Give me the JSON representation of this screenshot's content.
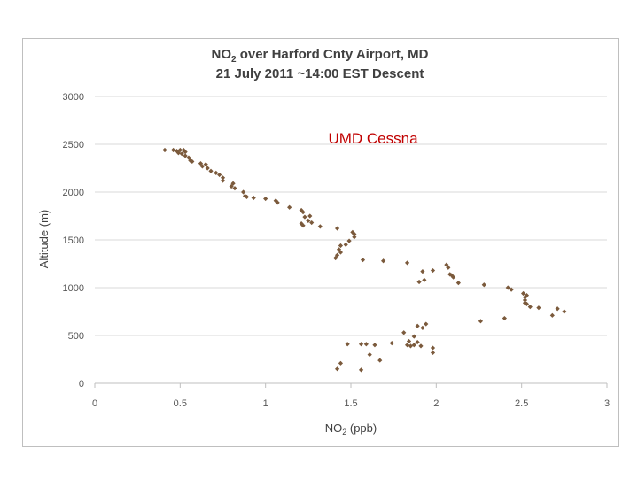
{
  "chart_data": {
    "type": "scatter",
    "title_line1_prefix": "NO",
    "title_line1_sub": "2",
    "title_line1_suffix": " over Harford Cnty Airport, MD",
    "title_line2": "21 July 2011  ~14:00 EST Descent",
    "annotation": "UMD Cessna",
    "xlabel_prefix": "NO",
    "xlabel_sub": "2",
    "xlabel_suffix": " (ppb)",
    "ylabel": "Altitude (m)",
    "xlim": [
      0,
      3
    ],
    "ylim": [
      0,
      3000
    ],
    "x_ticks": [
      "0",
      "0.5",
      "1",
      "1.5",
      "2",
      "2.5",
      "3"
    ],
    "y_ticks": [
      "0",
      "500",
      "1000",
      "1500",
      "2000",
      "2500",
      "3000"
    ],
    "grid": "horizontal",
    "marker_color": "#7b5a3c",
    "points": [
      [
        0.41,
        2440
      ],
      [
        0.46,
        2440
      ],
      [
        0.48,
        2430
      ],
      [
        0.5,
        2440
      ],
      [
        0.52,
        2440
      ],
      [
        0.53,
        2420
      ],
      [
        0.49,
        2410
      ],
      [
        0.51,
        2400
      ],
      [
        0.53,
        2380
      ],
      [
        0.55,
        2360
      ],
      [
        0.56,
        2330
      ],
      [
        0.57,
        2320
      ],
      [
        0.62,
        2300
      ],
      [
        0.63,
        2270
      ],
      [
        0.65,
        2290
      ],
      [
        0.66,
        2250
      ],
      [
        0.68,
        2220
      ],
      [
        0.71,
        2200
      ],
      [
        0.73,
        2180
      ],
      [
        0.75,
        2150
      ],
      [
        0.75,
        2120
      ],
      [
        0.8,
        2060
      ],
      [
        0.81,
        2090
      ],
      [
        0.82,
        2040
      ],
      [
        0.87,
        2000
      ],
      [
        0.88,
        1960
      ],
      [
        0.89,
        1950
      ],
      [
        0.93,
        1940
      ],
      [
        1.0,
        1930
      ],
      [
        1.06,
        1910
      ],
      [
        1.07,
        1890
      ],
      [
        1.14,
        1840
      ],
      [
        1.21,
        1810
      ],
      [
        1.22,
        1790
      ],
      [
        1.23,
        1740
      ],
      [
        1.26,
        1750
      ],
      [
        1.25,
        1700
      ],
      [
        1.27,
        1680
      ],
      [
        1.21,
        1670
      ],
      [
        1.22,
        1650
      ],
      [
        1.32,
        1640
      ],
      [
        1.42,
        1620
      ],
      [
        1.51,
        1580
      ],
      [
        1.52,
        1560
      ],
      [
        1.52,
        1530
      ],
      [
        1.49,
        1490
      ],
      [
        1.47,
        1450
      ],
      [
        1.44,
        1440
      ],
      [
        1.43,
        1400
      ],
      [
        1.44,
        1370
      ],
      [
        1.42,
        1340
      ],
      [
        1.41,
        1310
      ],
      [
        1.57,
        1290
      ],
      [
        1.69,
        1280
      ],
      [
        1.83,
        1260
      ],
      [
        1.92,
        1170
      ],
      [
        1.98,
        1180
      ],
      [
        2.06,
        1240
      ],
      [
        2.07,
        1210
      ],
      [
        2.08,
        1140
      ],
      [
        2.09,
        1130
      ],
      [
        2.1,
        1110
      ],
      [
        2.13,
        1050
      ],
      [
        1.93,
        1080
      ],
      [
        1.9,
        1060
      ],
      [
        2.28,
        1030
      ],
      [
        2.42,
        1000
      ],
      [
        2.44,
        980
      ],
      [
        2.51,
        940
      ],
      [
        2.52,
        900
      ],
      [
        2.53,
        920
      ],
      [
        2.52,
        870
      ],
      [
        2.52,
        840
      ],
      [
        2.53,
        830
      ],
      [
        2.55,
        800
      ],
      [
        2.6,
        790
      ],
      [
        2.68,
        710
      ],
      [
        2.71,
        780
      ],
      [
        2.75,
        750
      ],
      [
        2.4,
        680
      ],
      [
        2.26,
        650
      ],
      [
        1.94,
        620
      ],
      [
        1.92,
        580
      ],
      [
        1.89,
        600
      ],
      [
        1.81,
        530
      ],
      [
        1.87,
        490
      ],
      [
        1.84,
        440
      ],
      [
        1.83,
        400
      ],
      [
        1.85,
        390
      ],
      [
        1.87,
        400
      ],
      [
        1.89,
        430
      ],
      [
        1.91,
        390
      ],
      [
        1.98,
        370
      ],
      [
        1.98,
        320
      ],
      [
        1.74,
        420
      ],
      [
        1.64,
        400
      ],
      [
        1.61,
        300
      ],
      [
        1.67,
        240
      ],
      [
        1.56,
        410
      ],
      [
        1.59,
        410
      ],
      [
        1.48,
        410
      ],
      [
        1.44,
        210
      ],
      [
        1.42,
        150
      ],
      [
        1.56,
        140
      ]
    ]
  }
}
